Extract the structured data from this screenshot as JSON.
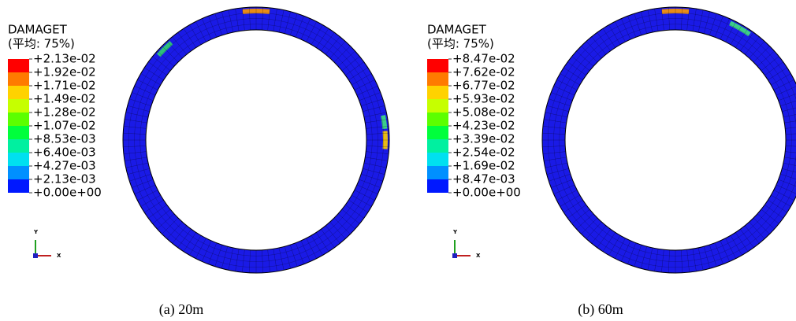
{
  "panels": [
    {
      "legend": {
        "title": "DAMAGET",
        "subtitle": "(平均: 75%)",
        "labels": [
          "+2.13e-02",
          "+1.92e-02",
          "+1.71e-02",
          "+1.49e-02",
          "+1.28e-02",
          "+1.07e-02",
          "+8.53e-03",
          "+6.40e-03",
          "+4.27e-03",
          "+2.13e-03",
          "+0.00e+00"
        ]
      },
      "triad": {
        "y": "Y",
        "x": "X"
      },
      "caption": "(a) 20m"
    },
    {
      "legend": {
        "title": "DAMAGET",
        "subtitle": "(平均: 75%)",
        "labels": [
          "+8.47e-02",
          "+7.62e-02",
          "+6.77e-02",
          "+5.93e-02",
          "+5.08e-02",
          "+4.23e-02",
          "+3.39e-02",
          "+2.54e-02",
          "+1.69e-02",
          "+8.47e-03",
          "+0.00e+00"
        ]
      },
      "triad": {
        "y": "Y",
        "x": "X"
      },
      "caption": "(b) 60m"
    }
  ]
}
